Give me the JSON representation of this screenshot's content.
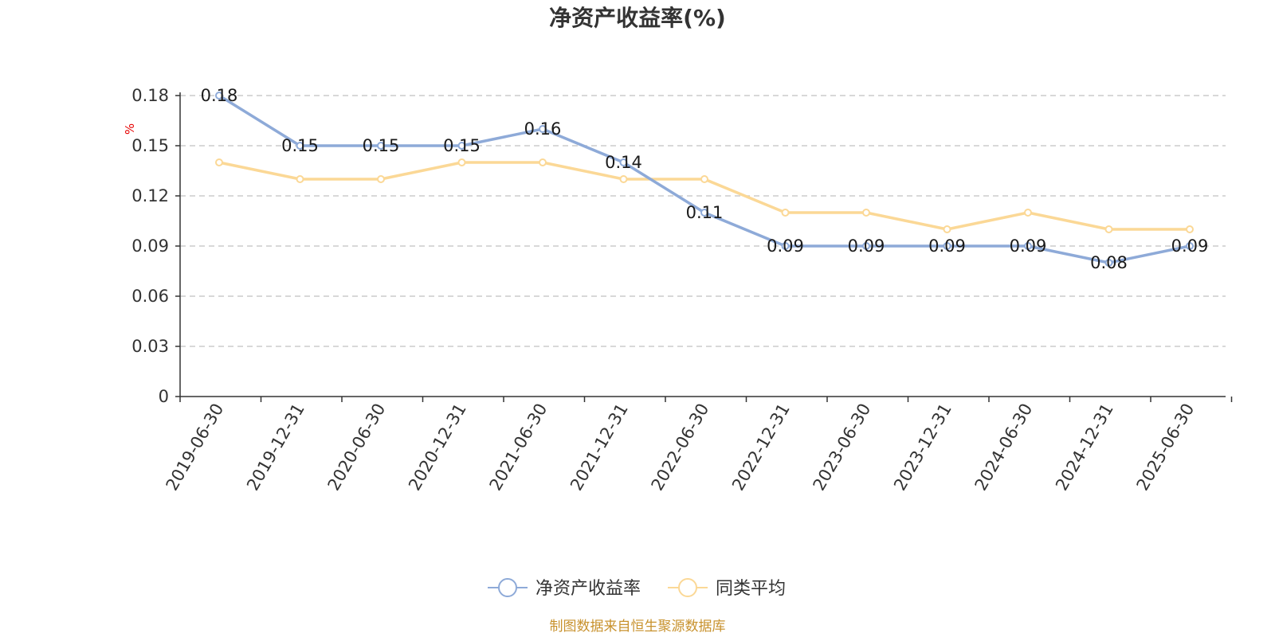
{
  "chart_data": {
    "type": "line",
    "title": "净资产收益率(%)",
    "ylabel": "%",
    "ylim": [
      0,
      0.18
    ],
    "yticks": [
      "0",
      "0.03",
      "0.06",
      "0.09",
      "0.12",
      "0.15",
      "0.18"
    ],
    "ytick_values": [
      0,
      0.03,
      0.06,
      0.09,
      0.12,
      0.15,
      0.18
    ],
    "categories": [
      "2019-06-30",
      "2019-12-31",
      "2020-06-30",
      "2020-12-31",
      "2021-06-30",
      "2021-12-31",
      "2022-06-30",
      "2022-12-31",
      "2023-06-30",
      "2023-12-31",
      "2024-06-30",
      "2024-12-31",
      "2025-06-30"
    ],
    "grid": true,
    "legend_position": "bottom",
    "series": [
      {
        "name": "净资产收益率",
        "color": "#8eaad8",
        "values": [
          0.18,
          0.15,
          0.15,
          0.15,
          0.16,
          0.14,
          0.11,
          0.09,
          0.09,
          0.09,
          0.09,
          0.08,
          0.09
        ],
        "labels": [
          "0.18",
          "0.15",
          "0.15",
          "0.15",
          "0.16",
          "0.14",
          "0.11",
          "0.09",
          "0.09",
          "0.09",
          "0.09",
          "0.08",
          "0.09"
        ]
      },
      {
        "name": "同类平均",
        "color": "#fbd896",
        "values": [
          0.14,
          0.13,
          0.13,
          0.14,
          0.14,
          0.13,
          0.13,
          0.11,
          0.11,
          0.1,
          0.11,
          0.1,
          0.1
        ]
      }
    ]
  },
  "source": "制图数据来自恒生聚源数据库"
}
